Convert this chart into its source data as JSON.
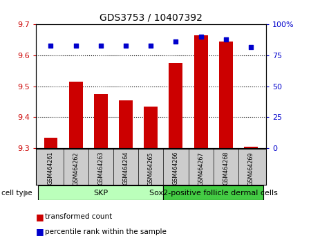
{
  "title": "GDS3753 / 10407392",
  "samples": [
    "GSM464261",
    "GSM464262",
    "GSM464263",
    "GSM464264",
    "GSM464265",
    "GSM464266",
    "GSM464267",
    "GSM464268",
    "GSM464269"
  ],
  "bar_values": [
    9.335,
    9.515,
    9.475,
    9.455,
    9.435,
    9.575,
    9.665,
    9.645,
    9.305
  ],
  "percentile_values": [
    83,
    83,
    83,
    83,
    83,
    86,
    90,
    88,
    82
  ],
  "ylim_left": [
    9.3,
    9.7
  ],
  "ylim_right": [
    0,
    100
  ],
  "yticks_left": [
    9.3,
    9.4,
    9.5,
    9.6,
    9.7
  ],
  "yticks_right": [
    0,
    25,
    50,
    75,
    100
  ],
  "bar_color": "#cc0000",
  "dot_color": "#0000cc",
  "bar_bottom": 9.3,
  "skp_color": "#bbffbb",
  "sox2_color": "#44cc44",
  "skp_label": "SKP",
  "sox2_label": "Sox2-positive follicle dermal cells",
  "skp_samples": 5,
  "cell_type_label": "cell type",
  "legend_bar_label": "transformed count",
  "legend_dot_label": "percentile rank within the sample",
  "bar_label_color": "#cc0000",
  "dot_label_color": "#0000cc",
  "background_color": "#ffffff",
  "sample_box_color": "#cccccc",
  "grid_yticks": [
    9.4,
    9.5,
    9.6
  ]
}
